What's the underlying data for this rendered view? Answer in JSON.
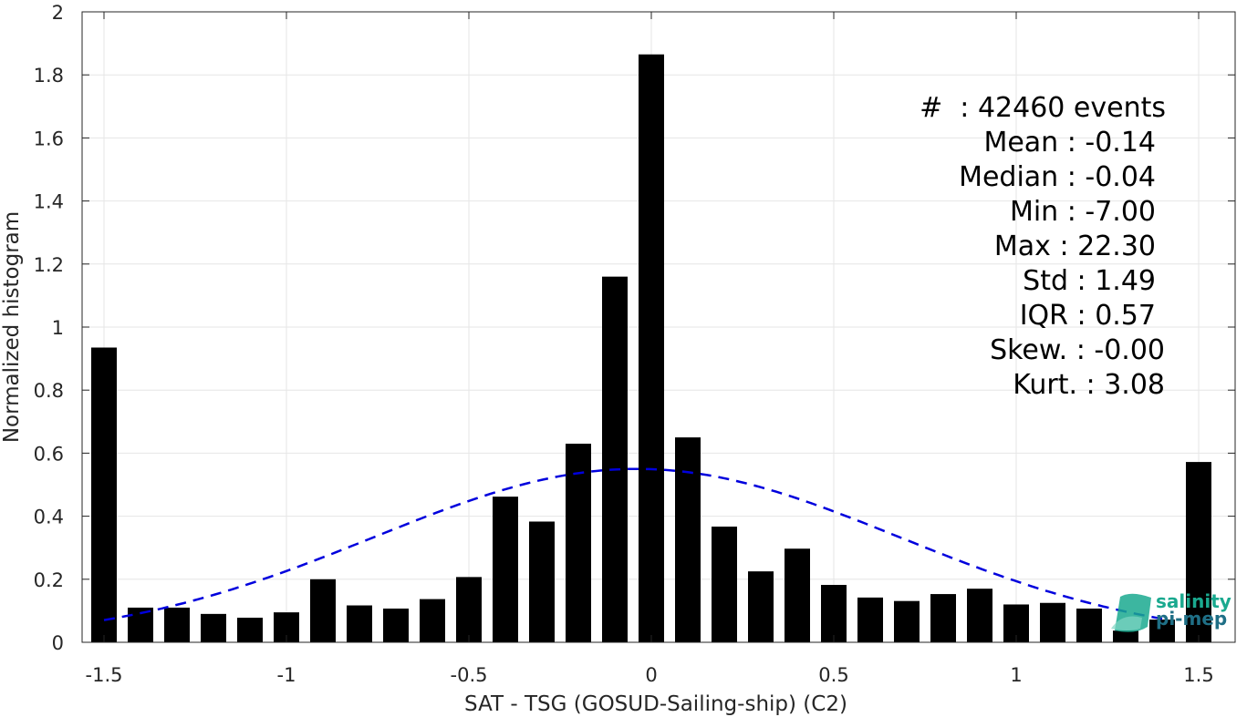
{
  "chart_data": {
    "type": "bar",
    "xlabel": "SAT - TSG (GOSUD-Sailing-ship) (C2)",
    "ylabel": "Normalized histogram",
    "xlim": [
      -1.56,
      1.6
    ],
    "ylim": [
      0,
      2
    ],
    "xticks": [
      -1.5,
      -1,
      -0.5,
      0,
      0.5,
      1,
      1.5
    ],
    "xtick_labels": [
      "-1.5",
      "-1",
      "-0.5",
      "0",
      "0.5",
      "1",
      "1.5"
    ],
    "yticks": [
      0,
      0.2,
      0.4,
      0.6,
      0.8,
      1,
      1.2,
      1.4,
      1.6,
      1.8,
      2
    ],
    "ytick_labels": [
      "0",
      "0.2",
      "0.4",
      "0.6",
      "0.8",
      "1",
      "1.2",
      "1.4",
      "1.6",
      "1.8",
      "2"
    ],
    "grid": true,
    "bar_color": "#000000",
    "bar_width": 0.07,
    "x": [
      -1.5,
      -1.4,
      -1.3,
      -1.2,
      -1.1,
      -1.0,
      -0.9,
      -0.8,
      -0.7,
      -0.6,
      -0.5,
      -0.4,
      -0.3,
      -0.2,
      -0.1,
      0.0,
      0.1,
      0.2,
      0.3,
      0.4,
      0.5,
      0.6,
      0.7,
      0.8,
      0.9,
      1.0,
      1.1,
      1.2,
      1.3,
      1.4,
      1.5
    ],
    "values": [
      0.935,
      0.11,
      0.11,
      0.09,
      0.078,
      0.095,
      0.2,
      0.117,
      0.107,
      0.137,
      0.207,
      0.462,
      0.383,
      0.63,
      1.16,
      1.865,
      0.65,
      0.367,
      0.225,
      0.297,
      0.182,
      0.142,
      0.131,
      0.153,
      0.17,
      0.12,
      0.125,
      0.107,
      0.037,
      0.072,
      0.572
    ],
    "normal_fit": {
      "mean": -0.04,
      "peak": 0.55,
      "sigma": 0.72,
      "color": "#0000dd",
      "style": "dashed",
      "x_range": [
        -1.5,
        1.4
      ]
    },
    "stats": [
      {
        "key": "#  ",
        "value": "42460 events",
        "sep": ": "
      },
      {
        "key": "Mean",
        "value": "-0.14",
        "sep": " : "
      },
      {
        "key": "Median",
        "value": "-0.04",
        "sep": " : "
      },
      {
        "key": "Min",
        "value": "-7.00",
        "sep": " : "
      },
      {
        "key": "Max",
        "value": "22.30",
        "sep": " : "
      },
      {
        "key": "Std",
        "value": "1.49",
        "sep": " : "
      },
      {
        "key": "IQR",
        "value": "0.57",
        "sep": " : "
      },
      {
        "key": "Skew.",
        "value": "-0.00",
        "sep": " : "
      },
      {
        "key": "Kurt.",
        "value": "3.08",
        "sep": " : "
      }
    ]
  },
  "logo": {
    "line1": "salinity",
    "line2": "pi-mep",
    "color1": "#1aa98f",
    "color2": "#1f6f86"
  }
}
